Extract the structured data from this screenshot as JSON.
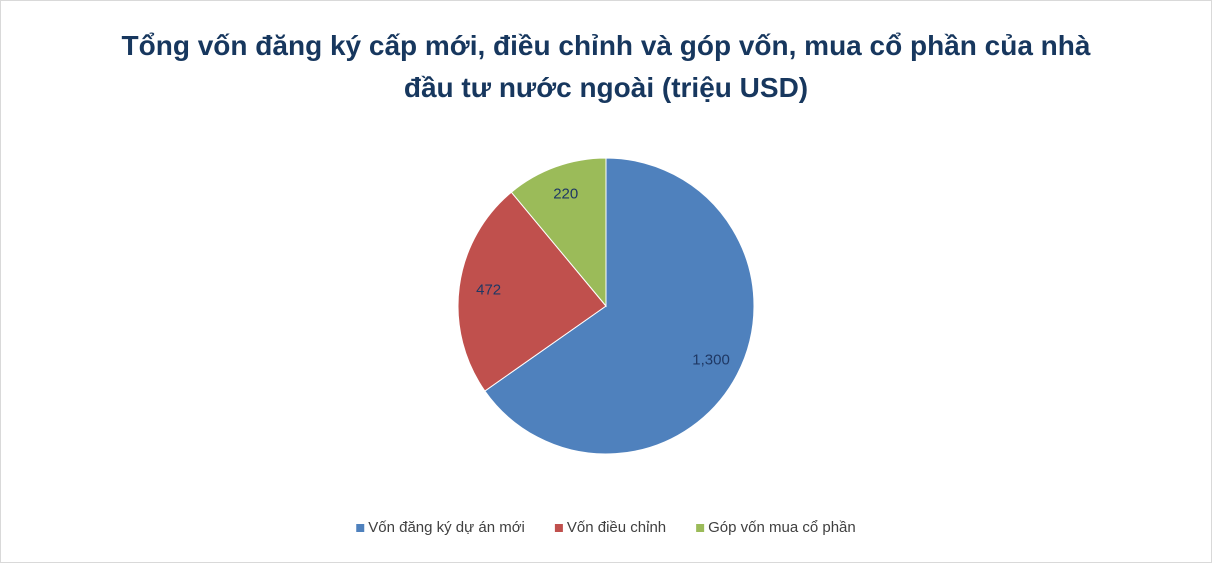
{
  "chart_data": {
    "type": "pie",
    "title": "Tổng vốn đăng ký cấp mới, điều chỉnh và góp vốn, mua cổ phần của nhà đầu tư nước ngoài (triệu USD)",
    "categories": [
      "Vốn đăng ký dự án mới",
      "Vốn điều chỉnh",
      "Góp vốn mua cổ phần"
    ],
    "values": [
      1300,
      472,
      220
    ],
    "value_labels": [
      "1,300",
      "472",
      "220"
    ],
    "colors": [
      "#4f81bd",
      "#c0504d",
      "#9bbb59"
    ],
    "legend": "bottom"
  }
}
